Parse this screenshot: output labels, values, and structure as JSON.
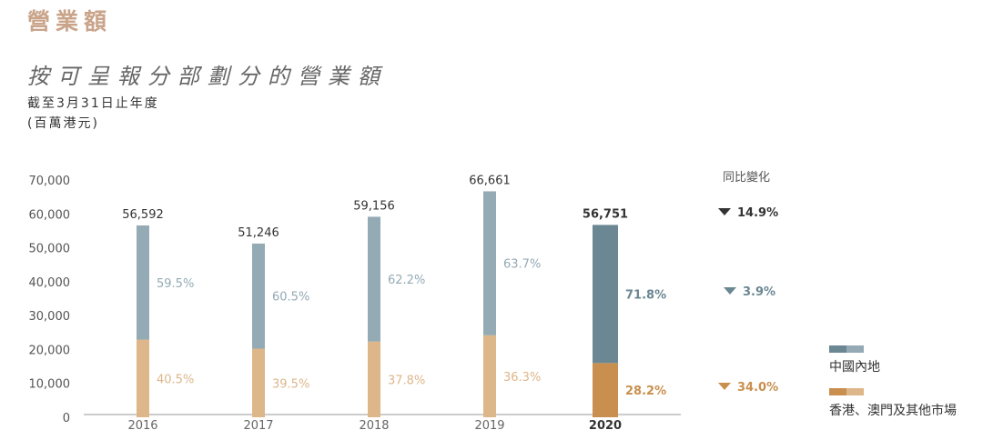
{
  "header": {
    "section_title": "營業額",
    "chart_title": "按可呈報分部劃分的營業額",
    "subtitle_1": "截至3月31日止年度",
    "subtitle_2": "(百萬港元)",
    "yoy_header": "同比變化"
  },
  "colors": {
    "section_title": "#c9a48a",
    "mainland_light": "#94aab5",
    "mainland_dark": "#6b8793",
    "hk_light": "#ddb68a",
    "hk_dark": "#c98f4e",
    "total_dark": "#333333",
    "axis": "#999999"
  },
  "chart_data": {
    "type": "bar",
    "stacked": true,
    "title": "按可呈報分部劃分的營業額",
    "categories": [
      "2016",
      "2017",
      "2018",
      "2019",
      "2020"
    ],
    "ylim": [
      0,
      70000
    ],
    "yticks": [
      0,
      10000,
      20000,
      30000,
      40000,
      50000,
      60000,
      70000
    ],
    "ytick_labels": [
      "0",
      "10,000",
      "20,000",
      "30,000",
      "40,000",
      "50,000",
      "60,000",
      "70,000"
    ],
    "totals": [
      56592,
      51246,
      59156,
      66661,
      56751
    ],
    "total_labels": [
      "56,592",
      "51,246",
      "59,156",
      "66,661",
      "56,751"
    ],
    "series": [
      {
        "name": "香港、澳門及其他市場",
        "values": [
          22920,
          20242,
          22361,
          24198,
          16004
        ],
        "pct_labels": [
          "40.5%",
          "39.5%",
          "37.8%",
          "36.3%",
          "28.2%"
        ]
      },
      {
        "name": "中國內地",
        "values": [
          33672,
          31004,
          36795,
          42463,
          40747
        ],
        "pct_labels": [
          "59.5%",
          "60.5%",
          "62.2%",
          "63.7%",
          "71.8%"
        ]
      }
    ],
    "highlight_index": 4,
    "yoy_change": [
      {
        "label": "14.9%",
        "direction": "down",
        "target": "total"
      },
      {
        "label": "3.9%",
        "direction": "down",
        "target": "mainland"
      },
      {
        "label": "34.0%",
        "direction": "down",
        "target": "hk"
      }
    ],
    "legend_placement": "right"
  },
  "legend": {
    "mainland": "中國內地",
    "hk": "香港、澳門及其他市場"
  }
}
